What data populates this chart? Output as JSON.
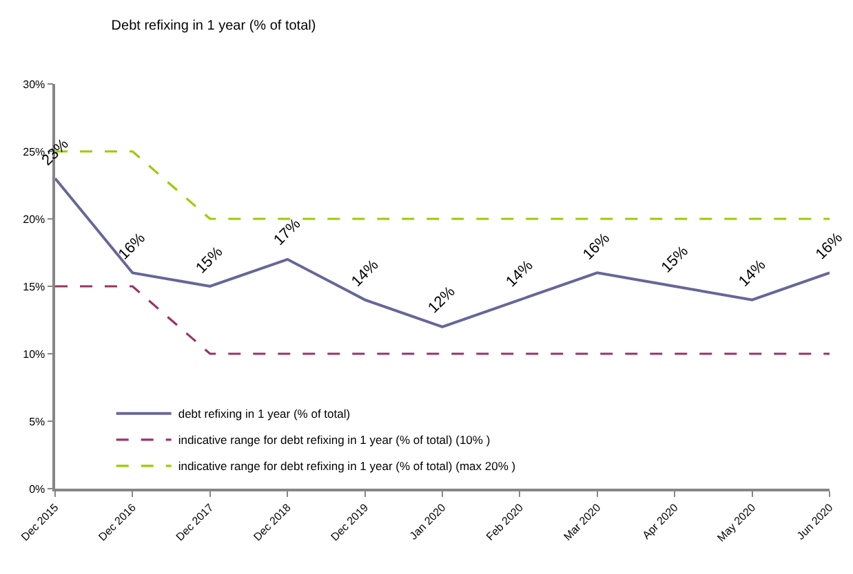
{
  "chart_data": {
    "type": "line",
    "title": "Debt refixing in 1 year (% of total)",
    "categories": [
      "Dec 2015",
      "Dec 2016",
      "Dec 2017",
      "Dec 2018",
      "Dec 2019",
      "Jan 2020",
      "Feb 2020",
      "Mar 2020",
      "Apr 2020",
      "May 2020",
      "Jun 2020"
    ],
    "series": [
      {
        "name": "debt refixing in 1 year (% of total)",
        "color": "#666699",
        "values": [
          23,
          16,
          15,
          17,
          14,
          12,
          14,
          16,
          15,
          14,
          16
        ],
        "value_labels": [
          "23%",
          "16%",
          "15%",
          "17%",
          "14%",
          "12%",
          "14%",
          "16%",
          "15%",
          "14%",
          "16%"
        ],
        "line_style": "solid"
      },
      {
        "name": "indicative range for debt refixing in 1 year (% of total) (10% )",
        "color": "#993366",
        "values": [
          15,
          15,
          10,
          10,
          10,
          10,
          10,
          10,
          10,
          10,
          10
        ],
        "line_style": "dashed"
      },
      {
        "name": "indicative range for debt refixing in 1 year (% of total) (max 20% )",
        "color": "#99cc00",
        "values": [
          25,
          25,
          20,
          20,
          20,
          20,
          20,
          20,
          20,
          20,
          20
        ],
        "line_style": "dashed"
      }
    ],
    "ylim": [
      0,
      30
    ],
    "yticks": [
      {
        "value": 0,
        "label": "0%"
      },
      {
        "value": 5,
        "label": "5%"
      },
      {
        "value": 10,
        "label": "10%"
      },
      {
        "value": 15,
        "label": "15%"
      },
      {
        "value": 20,
        "label": "20%"
      },
      {
        "value": 25,
        "label": "25%"
      },
      {
        "value": 30,
        "label": "30%"
      }
    ],
    "legend": "bottom left"
  }
}
